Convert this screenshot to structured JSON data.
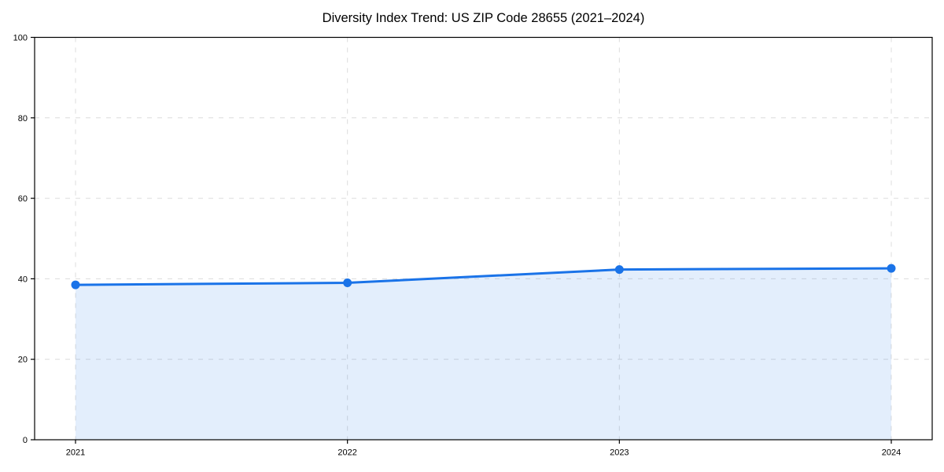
{
  "chart_data": {
    "type": "area",
    "title": "Diversity Index Trend: US ZIP Code 28655 (2021–2024)",
    "categories": [
      "2021",
      "2022",
      "2023",
      "2024"
    ],
    "values": [
      38.5,
      39.0,
      42.3,
      42.6
    ],
    "xlabel": "",
    "ylabel": "",
    "ylim": [
      0,
      100
    ],
    "yticks": [
      0,
      20,
      40,
      60,
      80,
      100
    ],
    "grid": true,
    "grid_style": "dashed",
    "legend": false,
    "line_color": "#1a73e8",
    "fill_color": "rgba(26,115,232,0.12)",
    "grid_color": "#dcdcdc",
    "axis_color": "#000000",
    "background_color": "#ffffff"
  }
}
